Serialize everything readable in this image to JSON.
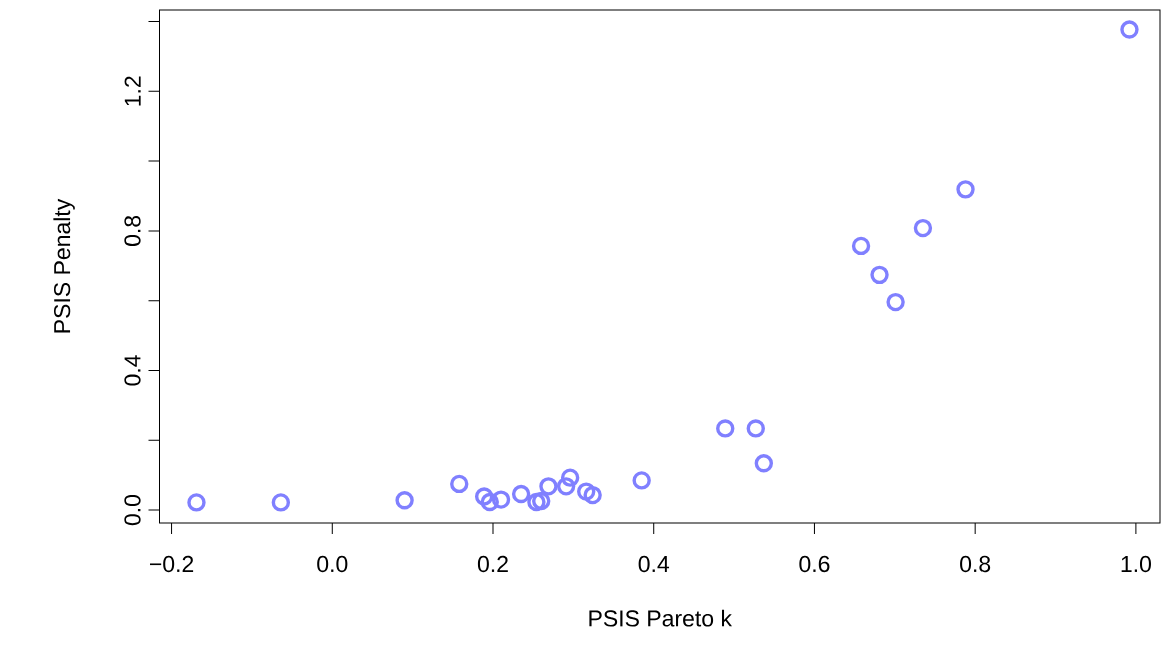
{
  "chart_data": {
    "type": "scatter",
    "xlabel": "PSIS Pareto k",
    "ylabel": "PSIS Penalty",
    "color": "#8080ff",
    "marker": "circle",
    "grid": false,
    "x": [
      -0.169,
      -0.064,
      0.09,
      0.158,
      0.189,
      0.196,
      0.21,
      0.235,
      0.254,
      0.26,
      0.269,
      0.291,
      0.296,
      0.316,
      0.324,
      0.385,
      0.489,
      0.527,
      0.537,
      0.658,
      0.681,
      0.701,
      0.735,
      0.788,
      0.992
    ],
    "values": [
      0.022,
      0.022,
      0.028,
      0.075,
      0.039,
      0.023,
      0.03,
      0.046,
      0.023,
      0.026,
      0.068,
      0.068,
      0.093,
      0.053,
      0.043,
      0.085,
      0.234,
      0.234,
      0.134,
      0.757,
      0.674,
      0.596,
      0.808,
      0.919,
      1.377
    ],
    "xlim": [
      -0.215,
      1.03
    ],
    "ylim": [
      -0.037,
      1.433
    ],
    "xticks": [
      {
        "value": -0.2,
        "label": "−0.2"
      },
      {
        "value": 0,
        "label": "0.0"
      },
      {
        "value": 0.2,
        "label": "0.2"
      },
      {
        "value": 0.4,
        "label": "0.4"
      },
      {
        "value": 0.6,
        "label": "0.6"
      },
      {
        "value": 0.8,
        "label": "0.8"
      },
      {
        "value": 1.0,
        "label": "1.0"
      }
    ],
    "yticks": [
      {
        "value": 0,
        "label": "0.0"
      },
      {
        "value": 0.2,
        "label": null
      },
      {
        "value": 0.4,
        "label": "0.4"
      },
      {
        "value": 0.6,
        "label": null
      },
      {
        "value": 0.8,
        "label": "0.8"
      },
      {
        "value": 1.0,
        "label": null
      },
      {
        "value": 1.2,
        "label": "1.2"
      },
      {
        "value": 1.4,
        "label": null
      }
    ]
  }
}
